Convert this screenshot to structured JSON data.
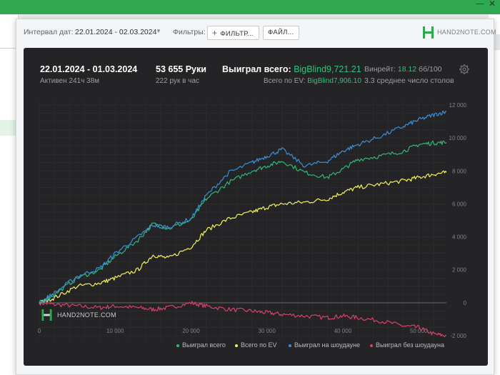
{
  "background": {
    "window_controls": {
      "minimize": "—",
      "close": "✕"
    }
  },
  "toolbar": {
    "interval_label": "Интервал дат:",
    "date_range": "22.01.2024 - 02.03.2024",
    "filters_label": "Фильтры:",
    "filter_button": "ФИЛЬТР...",
    "file_button": "ФАЙЛ...",
    "logo_text": "HAND2NOTE.COM"
  },
  "stats": {
    "period": "22.01.2024 - 01.03.2024",
    "active": "Активен 241ч 38м",
    "hands": "53 655 Руки",
    "hands_per_hour": "222 рук в час",
    "won_total_label": "Выиграл всего: ",
    "won_total_value": "BigBlind9,721.21",
    "ev_label": "Всего по EV: ",
    "ev_value": "BigBlind7,906.10",
    "winrate_label": "Винрейт: ",
    "winrate_value": "18.12",
    "winrate_unit": " бб/100",
    "avg_tables": "3.3 среднее число столов"
  },
  "watermark": "HAND2NOTE.COM",
  "colors": {
    "accent": "#33c07b",
    "panel_bg": "#242426",
    "won_total": "#2fb877",
    "ev": "#f2f25a",
    "showdown": "#3a8fdc",
    "non_showdown": "#d9406a"
  },
  "chart_data": {
    "type": "line",
    "x_ticks": [
      "0",
      "10 000",
      "20 000",
      "30 000",
      "40 000",
      "50 000"
    ],
    "y_ticks": [
      "12 000",
      "10 000",
      "8 000",
      "6 000",
      "4 000",
      "2 000",
      "0",
      "-2 000"
    ],
    "xlim": [
      0,
      53655
    ],
    "ylim": [
      -2300,
      12300
    ],
    "grid": true,
    "legend_position": "bottom",
    "series": [
      {
        "name": "Выиграл всего",
        "color": "#2fb877",
        "x": [
          0,
          2000,
          5000,
          8000,
          10000,
          13000,
          15000,
          17000,
          20000,
          22000,
          25000,
          28000,
          30000,
          32000,
          35000,
          38000,
          40000,
          42000,
          45000,
          48000,
          50000,
          52000,
          53655
        ],
        "y": [
          0,
          500,
          1500,
          2000,
          2800,
          3800,
          4800,
          4500,
          5000,
          6300,
          7300,
          8000,
          8300,
          8600,
          7900,
          7600,
          8100,
          8700,
          8900,
          9200,
          9600,
          9700,
          9721
        ]
      },
      {
        "name": "Всего по EV",
        "color": "#f2f25a",
        "x": [
          0,
          2000,
          5000,
          8000,
          10000,
          13000,
          15000,
          17000,
          20000,
          22000,
          25000,
          28000,
          30000,
          32000,
          35000,
          38000,
          40000,
          42000,
          45000,
          48000,
          50000,
          52000,
          53655
        ],
        "y": [
          0,
          300,
          1000,
          1200,
          1500,
          2000,
          2900,
          2700,
          3400,
          4400,
          5100,
          5500,
          5800,
          6000,
          6100,
          6300,
          6700,
          7000,
          7200,
          7400,
          7600,
          7800,
          7906
        ]
      },
      {
        "name": "Выиграл на шоудауне",
        "color": "#3a8fdc",
        "x": [
          0,
          2000,
          5000,
          8000,
          10000,
          13000,
          15000,
          17000,
          20000,
          22000,
          25000,
          28000,
          30000,
          32000,
          35000,
          38000,
          40000,
          42000,
          45000,
          48000,
          50000,
          52000,
          53655
        ],
        "y": [
          0,
          600,
          1600,
          2100,
          3000,
          4000,
          4700,
          4600,
          5100,
          6500,
          7900,
          8500,
          8900,
          9300,
          8300,
          8600,
          9200,
          9600,
          10100,
          10700,
          11100,
          11400,
          11600
        ]
      },
      {
        "name": "Выиграл без шоудауна",
        "color": "#d9406a",
        "x": [
          0,
          2000,
          5000,
          8000,
          10000,
          13000,
          15000,
          17000,
          20000,
          22000,
          25000,
          28000,
          30000,
          32000,
          35000,
          38000,
          40000,
          42000,
          45000,
          48000,
          50000,
          52000,
          53655
        ],
        "y": [
          0,
          -100,
          -200,
          -300,
          -200,
          -300,
          -400,
          -300,
          0,
          -200,
          -400,
          -500,
          -600,
          -700,
          -800,
          -900,
          -800,
          -900,
          -1100,
          -1400,
          -1500,
          -1900,
          -2000
        ]
      }
    ]
  }
}
